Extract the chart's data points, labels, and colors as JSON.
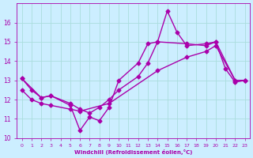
{
  "xlabel": "Windchill (Refroidissement éolien,°C)",
  "background_color": "#cceeff",
  "grid_color": "#aadddd",
  "line_color": "#aa00aa",
  "series1_x": [
    0,
    1,
    2,
    3,
    5,
    6,
    7,
    8,
    9,
    10,
    12,
    13,
    14,
    15,
    16,
    17,
    19,
    20,
    21,
    22,
    23
  ],
  "series1_y": [
    13.1,
    12.5,
    12.1,
    12.2,
    11.7,
    10.4,
    11.1,
    10.9,
    11.6,
    13.0,
    13.9,
    14.9,
    15.0,
    16.6,
    15.5,
    14.8,
    14.9,
    15.0,
    13.6,
    12.9,
    13.0
  ],
  "series2_x": [
    0,
    2,
    3,
    5,
    6,
    7,
    8,
    9,
    10,
    12,
    13,
    14,
    17,
    19,
    20,
    22,
    23
  ],
  "series2_y": [
    13.1,
    12.1,
    12.2,
    11.8,
    11.5,
    11.3,
    11.6,
    12.0,
    12.5,
    13.2,
    13.9,
    15.0,
    14.9,
    14.8,
    15.0,
    13.0,
    13.0
  ],
  "series3_x": [
    0,
    1,
    2,
    3,
    5,
    6,
    9,
    14,
    17,
    19,
    20,
    22,
    23
  ],
  "series3_y": [
    12.5,
    12.0,
    11.8,
    11.7,
    11.5,
    11.4,
    11.8,
    13.5,
    14.2,
    14.5,
    14.8,
    13.0,
    13.0
  ],
  "ylim": [
    10,
    17
  ],
  "xlim": [
    -0.5,
    23.5
  ],
  "yticks": [
    10,
    11,
    12,
    13,
    14,
    15,
    16
  ],
  "xticks": [
    0,
    1,
    2,
    3,
    4,
    5,
    6,
    7,
    8,
    9,
    10,
    11,
    12,
    13,
    14,
    15,
    16,
    17,
    18,
    19,
    20,
    21,
    22,
    23
  ],
  "markersize": 2.5,
  "linewidth": 1.0
}
